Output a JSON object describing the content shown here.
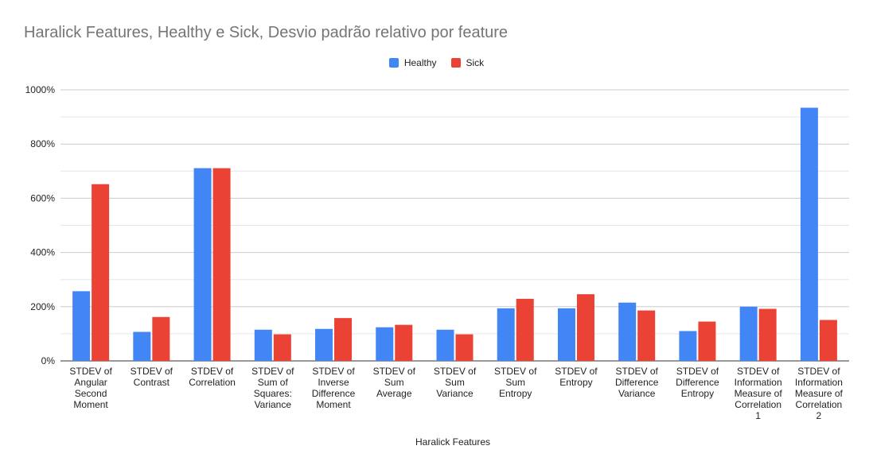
{
  "chart_data": {
    "type": "bar",
    "title": "Haralick Features, Healthy e Sick, Desvio padrão relativo por feature",
    "xlabel": "Haralick Features",
    "ylabel": "",
    "ylim": [
      0,
      1000
    ],
    "y_unit": "%",
    "yticks": [
      "0%",
      "200%",
      "400%",
      "600%",
      "800%",
      "1000%"
    ],
    "grid": true,
    "legend_position": "top-center",
    "categories": [
      [
        "STDEV of",
        "Angular",
        "Second",
        "Moment"
      ],
      [
        "STDEV of",
        "Contrast"
      ],
      [
        "STDEV of",
        "Correlation"
      ],
      [
        "STDEV of",
        "Sum of",
        "Squares:",
        "Variance"
      ],
      [
        "STDEV of",
        "Inverse",
        "Difference",
        "Moment"
      ],
      [
        "STDEV of",
        "Sum",
        "Average"
      ],
      [
        "STDEV of",
        "Sum",
        "Variance"
      ],
      [
        "STDEV of",
        "Sum",
        "Entropy"
      ],
      [
        "STDEV of",
        "Entropy"
      ],
      [
        "STDEV of",
        "Difference",
        "Variance"
      ],
      [
        "STDEV of",
        "Difference",
        "Entropy"
      ],
      [
        "STDEV of",
        "Information",
        "Measure of",
        "Correlation",
        "1"
      ],
      [
        "STDEV of",
        "Information",
        "Measure of",
        "Correlation",
        "2"
      ]
    ],
    "series": [
      {
        "name": "Healthy",
        "color": "#4285f4",
        "values": [
          257,
          107,
          711,
          115,
          118,
          124,
          115,
          194,
          194,
          215,
          110,
          200,
          934
        ]
      },
      {
        "name": "Sick",
        "color": "#ea4335",
        "values": [
          652,
          162,
          711,
          98,
          158,
          133,
          98,
          229,
          246,
          186,
          145,
          192,
          151
        ]
      }
    ]
  }
}
